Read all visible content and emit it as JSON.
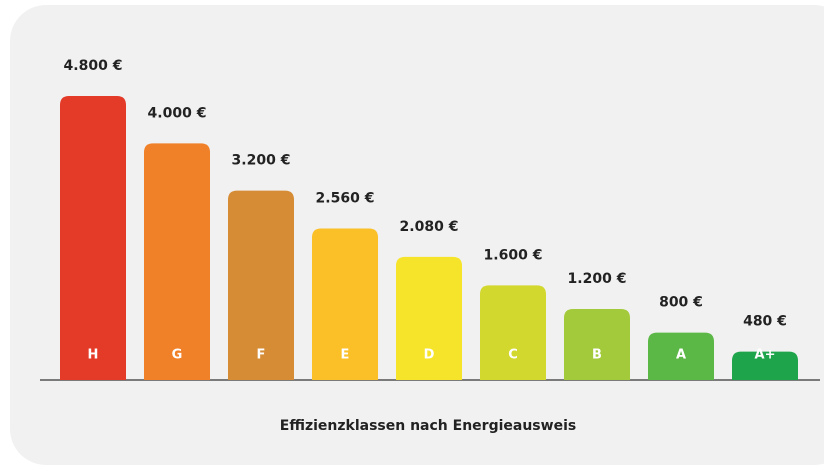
{
  "chart_data": {
    "type": "bar",
    "x_label": "Effizienzklassen nach Energieausweis",
    "categories": [
      "H",
      "G",
      "F",
      "E",
      "D",
      "C",
      "B",
      "A",
      "A+"
    ],
    "values": [
      4800,
      4000,
      3200,
      2560,
      2080,
      1600,
      1200,
      800,
      480
    ],
    "value_labels": [
      "4.800 €",
      "4.000 €",
      "3.200 €",
      "2.560 €",
      "2.080 €",
      "1.600 €",
      "1.200 €",
      "800 €",
      "480 €"
    ],
    "colors": [
      "#e43b29",
      "#f08129",
      "#d68c35",
      "#fbbf27",
      "#f6e42b",
      "#d3d82f",
      "#a3ca3b",
      "#5cb846",
      "#1ea44b"
    ]
  }
}
